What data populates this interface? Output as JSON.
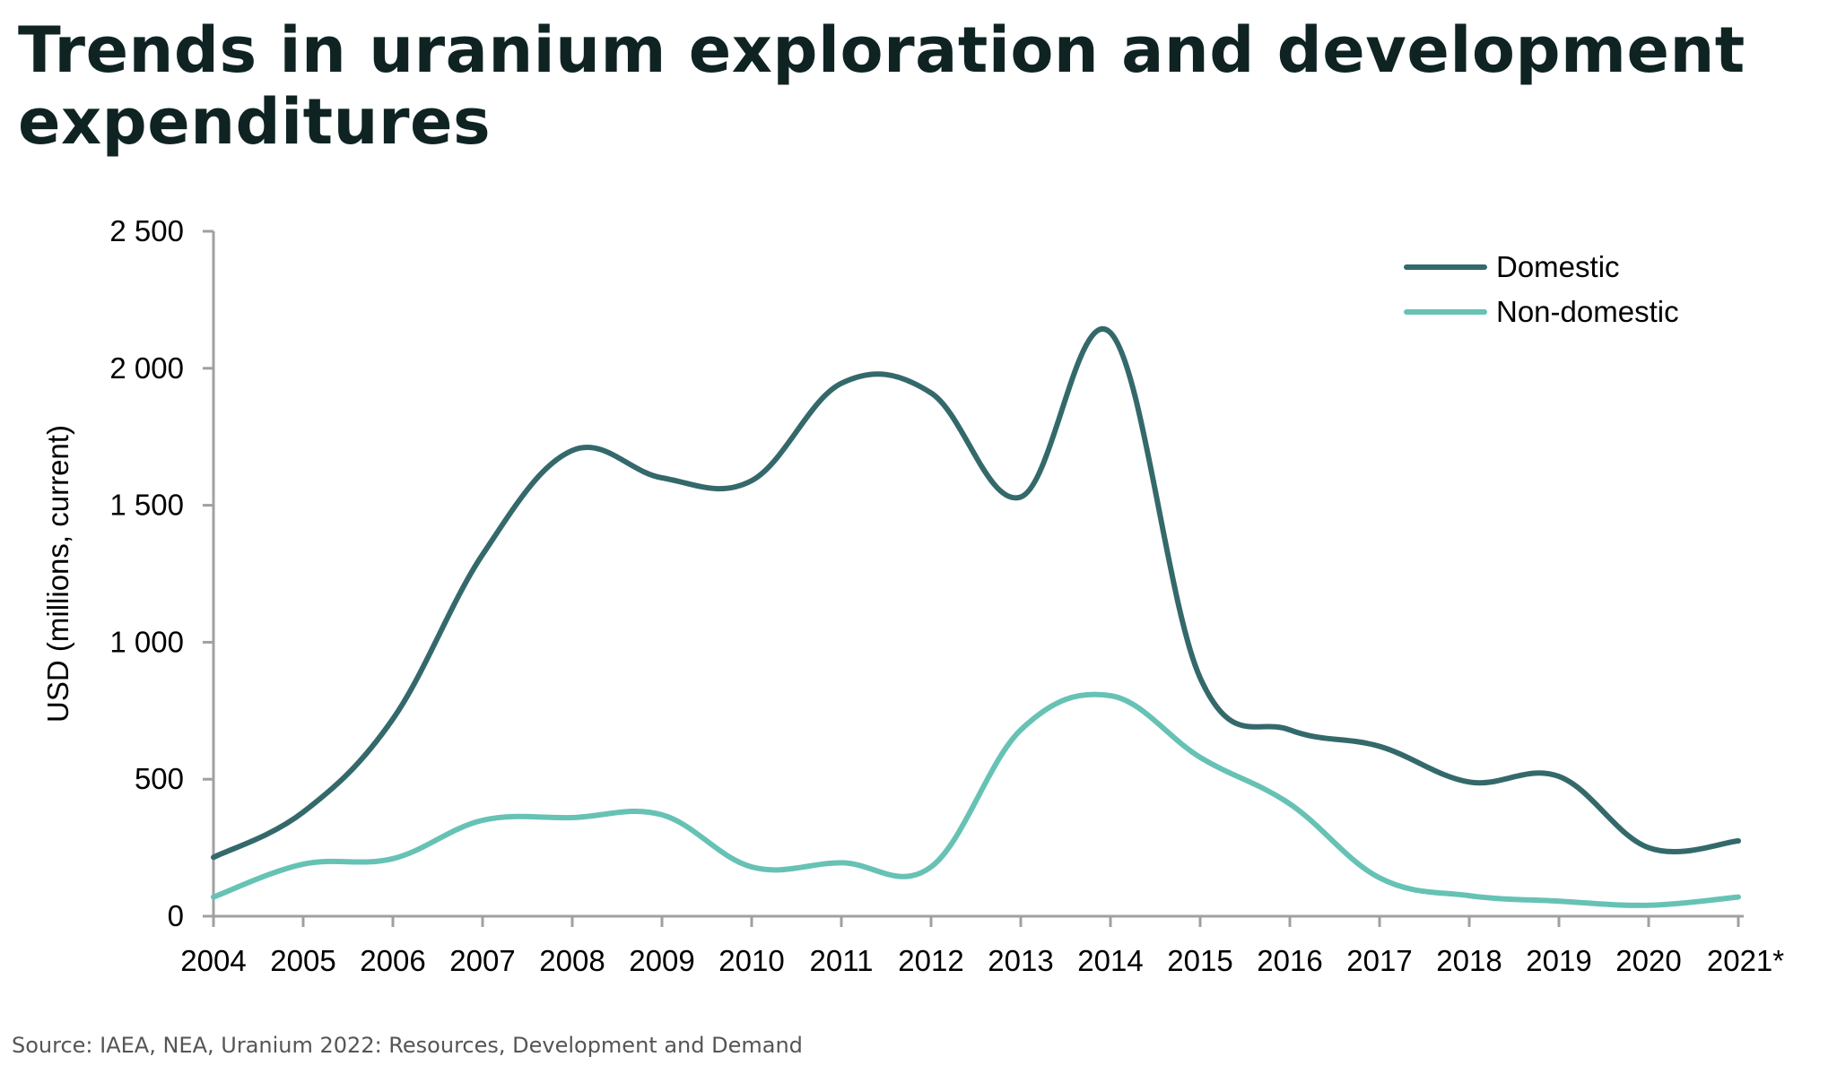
{
  "title": "Trends in uranium exploration and development expenditures",
  "source": "Source: IAEA, NEA, Uranium 2022: Resources, Development and Demand",
  "colors": {
    "title": "#0f2323",
    "domestic": "#34696b",
    "non_domestic": "#66c2b5",
    "axis": "#a0a0a0"
  },
  "chart_data": {
    "type": "line",
    "title": "Trends in uranium exploration and development expenditures",
    "xlabel": "",
    "ylabel": "USD (millions, current)",
    "categories": [
      "2004",
      "2005",
      "2006",
      "2007",
      "2008",
      "2009",
      "2010",
      "2011",
      "2012",
      "2013",
      "2014",
      "2015",
      "2016",
      "2017",
      "2018",
      "2019",
      "2020",
      "2021*"
    ],
    "y_ticks": [
      0,
      500,
      1000,
      1500,
      2000,
      2500
    ],
    "y_tick_labels": [
      "0",
      "500",
      "1 000",
      "1 500",
      "2 000",
      "2 500"
    ],
    "ylim": [
      0,
      2500
    ],
    "grid": false,
    "legend_position": "top-right",
    "series": [
      {
        "name": "Domestic",
        "color": "#34696b",
        "values": [
          215,
          380,
          720,
          1320,
          1700,
          1600,
          1590,
          1945,
          1910,
          1530,
          2130,
          870,
          680,
          620,
          490,
          510,
          250,
          275
        ]
      },
      {
        "name": "Non-domestic",
        "color": "#66c2b5",
        "values": [
          70,
          190,
          210,
          350,
          360,
          370,
          180,
          195,
          180,
          680,
          805,
          580,
          410,
          140,
          75,
          55,
          40,
          70
        ]
      }
    ]
  }
}
